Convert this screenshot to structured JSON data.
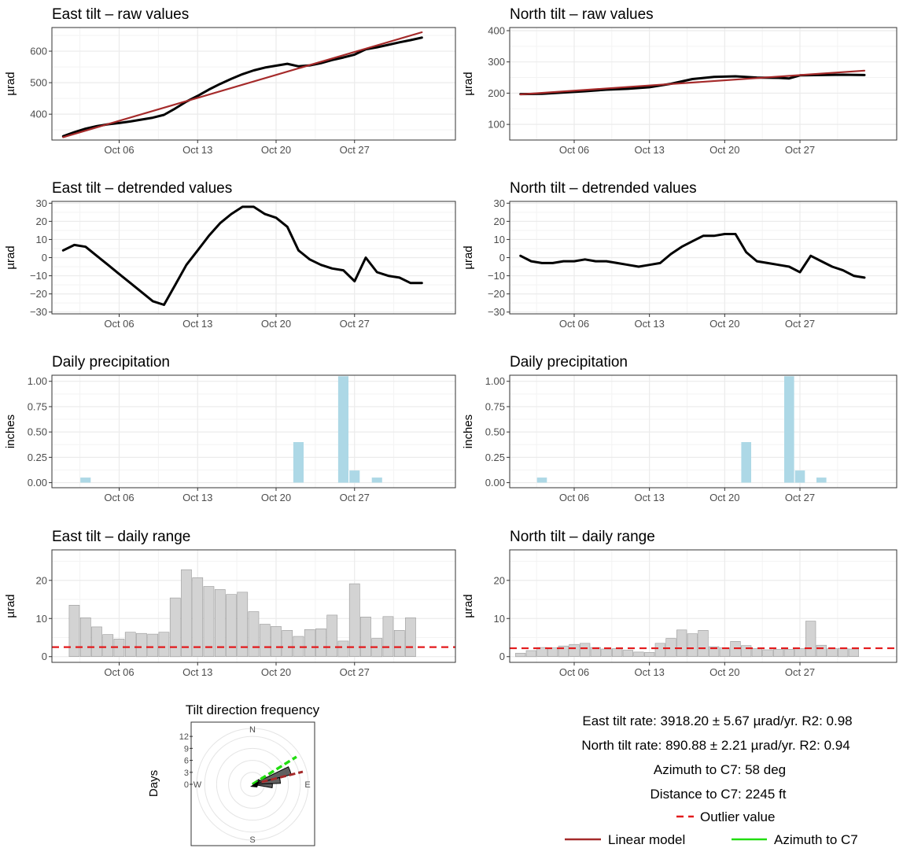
{
  "colors": {
    "series": "#000000",
    "linear_model": "#a52a2a",
    "precip_bar": "#add8e6",
    "range_bar": "#d3d3d3",
    "range_bar_edge": "#9a9a9a",
    "outlier": "#e31a1c",
    "azimuth": "#22dd11",
    "panel_border": "#333333",
    "grid": "#ebebeb"
  },
  "chart_data": [
    {
      "id": "east_raw",
      "type": "line",
      "title": "East tilt – raw values",
      "ylabel": "µrad",
      "xlim": [
        "2024-09-30",
        "2024-11-05"
      ],
      "xticks": [
        "Oct 06",
        "Oct 13",
        "Oct 20",
        "Oct 27"
      ],
      "xtick_dates": [
        "2024-10-06",
        "2024-10-13",
        "2024-10-20",
        "2024-10-27"
      ],
      "ylim": [
        318,
        675
      ],
      "yticks": [
        400,
        500,
        600
      ],
      "grid": true,
      "series": [
        {
          "role": "observed",
          "x": [
            "2024-10-01",
            "2024-10-02",
            "2024-10-03",
            "2024-10-04",
            "2024-10-05",
            "2024-10-06",
            "2024-10-07",
            "2024-10-08",
            "2024-10-09",
            "2024-10-10",
            "2024-10-11",
            "2024-10-12",
            "2024-10-13",
            "2024-10-14",
            "2024-10-15",
            "2024-10-16",
            "2024-10-17",
            "2024-10-18",
            "2024-10-19",
            "2024-10-20",
            "2024-10-21",
            "2024-10-22",
            "2024-10-23",
            "2024-10-24",
            "2024-10-25",
            "2024-10-26",
            "2024-10-27",
            "2024-10-28",
            "2024-10-29",
            "2024-10-30",
            "2024-10-31",
            "2024-11-01",
            "2024-11-02"
          ],
          "y": [
            330,
            343,
            354,
            362,
            368,
            372,
            377,
            383,
            389,
            398,
            418,
            440,
            458,
            478,
            496,
            512,
            527,
            539,
            548,
            554,
            560,
            552,
            555,
            562,
            572,
            580,
            589,
            606,
            612,
            620,
            628,
            635,
            643
          ]
        },
        {
          "role": "linear_model",
          "x": [
            "2024-10-01",
            "2024-11-02"
          ],
          "y": [
            327,
            660
          ]
        }
      ]
    },
    {
      "id": "north_raw",
      "type": "line",
      "title": "North tilt – raw values",
      "ylabel": "µrad",
      "xlim": [
        "2024-09-30",
        "2024-11-05"
      ],
      "xticks": [
        "Oct 06",
        "Oct 13",
        "Oct 20",
        "Oct 27"
      ],
      "xtick_dates": [
        "2024-10-06",
        "2024-10-13",
        "2024-10-20",
        "2024-10-27"
      ],
      "ylim": [
        50,
        410
      ],
      "yticks": [
        100,
        200,
        300,
        400
      ],
      "grid": true,
      "series": [
        {
          "role": "observed",
          "x": [
            "2024-10-01",
            "2024-10-03",
            "2024-10-05",
            "2024-10-07",
            "2024-10-09",
            "2024-10-11",
            "2024-10-13",
            "2024-10-15",
            "2024-10-17",
            "2024-10-19",
            "2024-10-21",
            "2024-10-23",
            "2024-10-25",
            "2024-10-26",
            "2024-10-27",
            "2024-10-29",
            "2024-10-31",
            "2024-11-02"
          ],
          "y": [
            197,
            198,
            202,
            206,
            211,
            214,
            219,
            230,
            245,
            252,
            254,
            250,
            249,
            247,
            257,
            258,
            259,
            258
          ]
        },
        {
          "role": "linear_model",
          "x": [
            "2024-10-01",
            "2024-11-02"
          ],
          "y": [
            196,
            272
          ]
        }
      ]
    },
    {
      "id": "east_detrended",
      "type": "line",
      "title": "East tilt – detrended values",
      "ylabel": "µrad",
      "xlim": [
        "2024-09-30",
        "2024-11-05"
      ],
      "xticks": [
        "Oct 06",
        "Oct 13",
        "Oct 20",
        "Oct 27"
      ],
      "xtick_dates": [
        "2024-10-06",
        "2024-10-13",
        "2024-10-20",
        "2024-10-27"
      ],
      "ylim": [
        -31,
        31
      ],
      "yticks": [
        -30,
        -20,
        -10,
        0,
        10,
        20,
        30
      ],
      "grid": true,
      "series": [
        {
          "role": "observed",
          "x": [
            "2024-10-01",
            "2024-10-02",
            "2024-10-03",
            "2024-10-04",
            "2024-10-05",
            "2024-10-06",
            "2024-10-07",
            "2024-10-08",
            "2024-10-09",
            "2024-10-10",
            "2024-10-11",
            "2024-10-12",
            "2024-10-13",
            "2024-10-14",
            "2024-10-15",
            "2024-10-16",
            "2024-10-17",
            "2024-10-18",
            "2024-10-19",
            "2024-10-20",
            "2024-10-21",
            "2024-10-22",
            "2024-10-23",
            "2024-10-24",
            "2024-10-25",
            "2024-10-26",
            "2024-10-27",
            "2024-10-28",
            "2024-10-29",
            "2024-10-30",
            "2024-10-31",
            "2024-11-01",
            "2024-11-02"
          ],
          "y": [
            4,
            7,
            6,
            1,
            -4,
            -9,
            -14,
            -19,
            -24,
            -26,
            -15,
            -4,
            4,
            12,
            19,
            24,
            28,
            28,
            24,
            22,
            17,
            4,
            -1,
            -4,
            -6,
            -7,
            -13,
            0,
            -8,
            -10,
            -11,
            -14,
            -14
          ]
        }
      ]
    },
    {
      "id": "north_detrended",
      "type": "line",
      "title": "North tilt – detrended values",
      "ylabel": "µrad",
      "xlim": [
        "2024-09-30",
        "2024-11-05"
      ],
      "xticks": [
        "Oct 06",
        "Oct 13",
        "Oct 20",
        "Oct 27"
      ],
      "xtick_dates": [
        "2024-10-06",
        "2024-10-13",
        "2024-10-20",
        "2024-10-27"
      ],
      "ylim": [
        -31,
        31
      ],
      "yticks": [
        -30,
        -20,
        -10,
        0,
        10,
        20,
        30
      ],
      "grid": true,
      "series": [
        {
          "role": "observed",
          "x": [
            "2024-10-01",
            "2024-10-02",
            "2024-10-03",
            "2024-10-04",
            "2024-10-05",
            "2024-10-06",
            "2024-10-07",
            "2024-10-08",
            "2024-10-09",
            "2024-10-10",
            "2024-10-11",
            "2024-10-12",
            "2024-10-13",
            "2024-10-14",
            "2024-10-15",
            "2024-10-16",
            "2024-10-17",
            "2024-10-18",
            "2024-10-19",
            "2024-10-20",
            "2024-10-21",
            "2024-10-22",
            "2024-10-23",
            "2024-10-24",
            "2024-10-25",
            "2024-10-26",
            "2024-10-27",
            "2024-10-28",
            "2024-10-29",
            "2024-10-30",
            "2024-10-31",
            "2024-11-01",
            "2024-11-02"
          ],
          "y": [
            1,
            -2,
            -3,
            -3,
            -2,
            -2,
            -1,
            -2,
            -2,
            -3,
            -4,
            -5,
            -4,
            -3,
            2,
            6,
            9,
            12,
            12,
            13,
            13,
            3,
            -2,
            -3,
            -4,
            -5,
            -8,
            1,
            -2,
            -5,
            -7,
            -10,
            -11
          ]
        }
      ]
    },
    {
      "id": "east_precip",
      "type": "bar",
      "title": "Daily precipitation",
      "ylabel": "inches",
      "xlim": [
        "2024-09-30",
        "2024-11-05"
      ],
      "xticks": [
        "Oct 06",
        "Oct 13",
        "Oct 20",
        "Oct 27"
      ],
      "xtick_dates": [
        "2024-10-06",
        "2024-10-13",
        "2024-10-20",
        "2024-10-27"
      ],
      "ylim": [
        -0.05,
        1.06
      ],
      "yticks": [
        0.0,
        0.25,
        0.5,
        0.75,
        1.0
      ],
      "ytick_labels": [
        "0.00",
        "0.25",
        "0.50",
        "0.75",
        "1.00"
      ],
      "grid": true,
      "x": [
        "2024-10-03",
        "2024-10-22",
        "2024-10-26",
        "2024-10-27",
        "2024-10-29"
      ],
      "values": [
        0.05,
        0.4,
        1.05,
        0.12,
        0.05
      ]
    },
    {
      "id": "north_precip",
      "type": "bar",
      "title": "Daily precipitation",
      "ylabel": "inches",
      "xlim": [
        "2024-09-30",
        "2024-11-05"
      ],
      "xticks": [
        "Oct 06",
        "Oct 13",
        "Oct 20",
        "Oct 27"
      ],
      "xtick_dates": [
        "2024-10-06",
        "2024-10-13",
        "2024-10-20",
        "2024-10-27"
      ],
      "ylim": [
        -0.05,
        1.06
      ],
      "yticks": [
        0.0,
        0.25,
        0.5,
        0.75,
        1.0
      ],
      "ytick_labels": [
        "0.00",
        "0.25",
        "0.50",
        "0.75",
        "1.00"
      ],
      "grid": true,
      "x": [
        "2024-10-03",
        "2024-10-22",
        "2024-10-26",
        "2024-10-27",
        "2024-10-29"
      ],
      "values": [
        0.05,
        0.4,
        1.05,
        0.12,
        0.05
      ]
    },
    {
      "id": "east_range",
      "type": "bar",
      "title": "East tilt – daily range",
      "ylabel": "µrad",
      "xlim": [
        "2024-09-30",
        "2024-11-05"
      ],
      "xticks": [
        "Oct 06",
        "Oct 13",
        "Oct 20",
        "Oct 27"
      ],
      "xtick_dates": [
        "2024-10-06",
        "2024-10-13",
        "2024-10-20",
        "2024-10-27"
      ],
      "ylim": [
        -1.5,
        28
      ],
      "yticks": [
        0,
        10,
        20
      ],
      "grid": true,
      "outlier_value": 2.5,
      "x": [
        "2024-10-02",
        "2024-10-03",
        "2024-10-04",
        "2024-10-05",
        "2024-10-06",
        "2024-10-07",
        "2024-10-08",
        "2024-10-09",
        "2024-10-10",
        "2024-10-11",
        "2024-10-12",
        "2024-10-13",
        "2024-10-14",
        "2024-10-15",
        "2024-10-16",
        "2024-10-17",
        "2024-10-18",
        "2024-10-19",
        "2024-10-20",
        "2024-10-21",
        "2024-10-22",
        "2024-10-23",
        "2024-10-24",
        "2024-10-25",
        "2024-10-26",
        "2024-10-27",
        "2024-10-28",
        "2024-10-29",
        "2024-10-30",
        "2024-10-31",
        "2024-11-01",
        "2024-11-02"
      ],
      "values": [
        13.5,
        10.2,
        7.8,
        5.8,
        4.6,
        6.4,
        6.1,
        5.9,
        6.4,
        15.4,
        22.8,
        20.7,
        18.4,
        17.6,
        16.3,
        16.9,
        11.8,
        8.5,
        7.9,
        6.9,
        5.3,
        7.1,
        7.3,
        10.9,
        4.1,
        19.1,
        10.4,
        4.8,
        10.5,
        6.9,
        10.2,
        0
      ]
    },
    {
      "id": "north_range",
      "type": "bar",
      "title": "North tilt – daily range",
      "ylabel": "µrad",
      "xlim": [
        "2024-09-30",
        "2024-11-05"
      ],
      "xticks": [
        "Oct 06",
        "Oct 13",
        "Oct 20",
        "Oct 27"
      ],
      "xtick_dates": [
        "2024-10-06",
        "2024-10-13",
        "2024-10-20",
        "2024-10-27"
      ],
      "ylim": [
        -1.5,
        28
      ],
      "yticks": [
        0,
        10,
        20
      ],
      "grid": true,
      "outlier_value": 2.2,
      "x": [
        "2024-10-01",
        "2024-10-02",
        "2024-10-03",
        "2024-10-04",
        "2024-10-05",
        "2024-10-06",
        "2024-10-07",
        "2024-10-08",
        "2024-10-09",
        "2024-10-10",
        "2024-10-11",
        "2024-10-12",
        "2024-10-13",
        "2024-10-14",
        "2024-10-15",
        "2024-10-16",
        "2024-10-17",
        "2024-10-18",
        "2024-10-19",
        "2024-10-20",
        "2024-10-21",
        "2024-10-22",
        "2024-10-23",
        "2024-10-24",
        "2024-10-25",
        "2024-10-26",
        "2024-10-27",
        "2024-10-28",
        "2024-10-29",
        "2024-10-30",
        "2024-10-31",
        "2024-11-01"
      ],
      "values": [
        0.9,
        1.6,
        2.4,
        2.3,
        2.8,
        3.2,
        3.5,
        2.4,
        2.0,
        2.1,
        1.7,
        1.2,
        1.1,
        3.5,
        4.8,
        7.0,
        6.0,
        6.9,
        2.6,
        2.3,
        4.0,
        2.9,
        2.1,
        1.8,
        1.9,
        1.9,
        2.1,
        9.3,
        3.0,
        2.1,
        2.2,
        2.0
      ]
    },
    {
      "id": "rose",
      "type": "rose",
      "title": "Tilt direction frequency",
      "ylabel": "Days",
      "rtick_labels": [
        "0",
        "3",
        "6",
        "9",
        "12"
      ],
      "rticks": [
        0,
        3,
        6,
        9,
        12
      ],
      "rmax": 14,
      "directions": [
        "N",
        "E",
        "S",
        "W"
      ],
      "sectors": [
        {
          "start_deg": 64,
          "end_deg": 76,
          "days": 10
        },
        {
          "start_deg": 76,
          "end_deg": 88,
          "days": 7
        },
        {
          "start_deg": 88,
          "end_deg": 100,
          "days": 5
        },
        {
          "start_deg": 52,
          "end_deg": 64,
          "days": 2
        }
      ],
      "azimuth_line": {
        "deg": 58,
        "length_days": 13
      },
      "model_line": {
        "deg": 76,
        "length_days": 13
      }
    }
  ],
  "summary": {
    "east_rate": "East tilt rate: 3918.20 ± 5.67 µrad/yr. R2: 0.98",
    "north_rate": "North tilt rate: 890.88 ± 2.21 µrad/yr. R2: 0.94",
    "azimuth": "Azimuth to C7: 58 deg",
    "distance": "Distance to C7: 2245 ft"
  },
  "legend": {
    "outlier": "Outlier value",
    "linear_model": "Linear model",
    "azimuth": "Azimuth to C7"
  }
}
